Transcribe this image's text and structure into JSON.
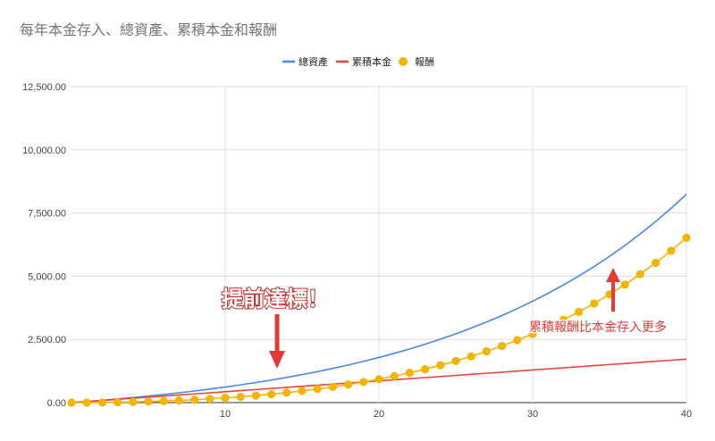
{
  "chart_data": {
    "type": "line",
    "title": "每年本金存入、總資產、累積本金和報酬",
    "xlabel": "",
    "ylabel": "",
    "xlim": [
      0,
      40
    ],
    "ylim": [
      0,
      12500
    ],
    "x_ticks": [
      10,
      20,
      30,
      40
    ],
    "y_ticks": [
      {
        "value": 0,
        "label": "0.00"
      },
      {
        "value": 2500,
        "label": "2,500.00"
      },
      {
        "value": 5000,
        "label": "5,000.00"
      },
      {
        "value": 7500,
        "label": "7,500.00"
      },
      {
        "value": 10000,
        "label": "10,000.00"
      },
      {
        "value": 12500,
        "label": "12,500.00"
      }
    ],
    "grid": true,
    "legend_position": "top-center",
    "x": [
      1,
      2,
      3,
      4,
      5,
      6,
      7,
      8,
      9,
      10,
      11,
      12,
      13,
      14,
      15,
      16,
      17,
      18,
      19,
      20,
      21,
      22,
      23,
      24,
      25,
      26,
      27,
      28,
      29,
      30,
      31,
      32,
      33,
      34,
      35,
      36,
      37,
      38,
      39,
      40
    ],
    "series": [
      {
        "name": "總資產",
        "color": "#4a86e8",
        "marker": false,
        "values": [
          45,
          93,
          145,
          200,
          259,
          321,
          388,
          459,
          535,
          615,
          702,
          794,
          892,
          996,
          1107,
          1226,
          1353,
          1488,
          1632,
          1785,
          1949,
          2124,
          2310,
          2509,
          2721,
          2947,
          3188,
          3444,
          3718,
          4010,
          4321,
          4653,
          5007,
          5384,
          5787,
          6216,
          6674,
          7162,
          7683,
          8238
        ]
      },
      {
        "name": "累積本金",
        "color": "#e8453c",
        "marker": false,
        "values": [
          43,
          86,
          129,
          172,
          215,
          258,
          301,
          344,
          387,
          430,
          473,
          516,
          559,
          602,
          645,
          688,
          731,
          774,
          817,
          860,
          903,
          946,
          989,
          1032,
          1075,
          1118,
          1161,
          1204,
          1247,
          1290,
          1333,
          1376,
          1419,
          1462,
          1505,
          1548,
          1591,
          1634,
          1677,
          1720
        ]
      },
      {
        "name": "報酬",
        "color": "#f4b400",
        "marker": true,
        "values": [
          2,
          7,
          16,
          28,
          44,
          63,
          87,
          115,
          148,
          185,
          229,
          278,
          333,
          394,
          462,
          538,
          622,
          714,
          815,
          925,
          1046,
          1178,
          1321,
          1477,
          1646,
          1829,
          2027,
          2240,
          2471,
          2720,
          2988,
          3277,
          3588,
          3922,
          4282,
          4668,
          5083,
          5528,
          6006,
          6518
        ]
      }
    ],
    "annotations": {
      "left_text": "提前達標！",
      "right_text": "累積報酬比本金存入更多",
      "arrow_color": "#e53935"
    }
  }
}
